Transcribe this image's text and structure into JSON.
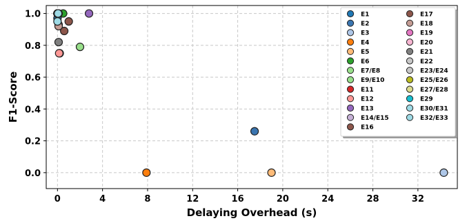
{
  "chart_data": {
    "type": "scatter",
    "xlabel": "Delaying Overhead (s)",
    "ylabel": "F1-Score",
    "xlim": [
      -1,
      35.5
    ],
    "ylim": [
      -0.1,
      1.05
    ],
    "xticks": [
      0,
      4,
      8,
      12,
      16,
      20,
      24,
      28,
      32
    ],
    "yticks": [
      0.0,
      0.2,
      0.4,
      0.6,
      0.8,
      1.0
    ],
    "xtick_labels": [
      "0",
      "4",
      "8",
      "12",
      "16",
      "20",
      "24",
      "28",
      "32"
    ],
    "ytick_labels": [
      "0.0",
      "0.2",
      "0.4",
      "0.6",
      "0.8",
      "1.0"
    ],
    "grid": true,
    "legend_placement": "top-right",
    "legend_columns": 2,
    "series": [
      {
        "name": "E1",
        "color": "#1f77b4",
        "points": [
          [
            0.0,
            0.97
          ]
        ]
      },
      {
        "name": "E2",
        "color": "#3a75b0",
        "points": [
          [
            17.5,
            0.26
          ]
        ]
      },
      {
        "name": "E3",
        "color": "#aec7e8",
        "points": [
          [
            34.3,
            0.0
          ]
        ]
      },
      {
        "name": "E4",
        "color": "#ff7f0e",
        "points": [
          [
            7.9,
            0.0
          ]
        ]
      },
      {
        "name": "E5",
        "color": "#ffbb78",
        "points": [
          [
            19.0,
            0.0
          ]
        ]
      },
      {
        "name": "E6",
        "color": "#2ca02c",
        "points": [
          [
            0.5,
            1.0
          ]
        ]
      },
      {
        "name": "E7/E8",
        "color": "#98df8a",
        "points": [
          [
            2.0,
            0.79
          ]
        ]
      },
      {
        "name": "E9/E10",
        "color": "#98df8a",
        "points": [
          [
            0.1,
            1.0
          ]
        ]
      },
      {
        "name": "E11",
        "color": "#d62728",
        "points": [
          [
            0.2,
            0.75
          ]
        ]
      },
      {
        "name": "E12",
        "color": "#ff9896",
        "points": [
          [
            0.15,
            0.75
          ]
        ]
      },
      {
        "name": "E13",
        "color": "#9467bd",
        "points": [
          [
            2.8,
            1.0
          ]
        ]
      },
      {
        "name": "E14/E15",
        "color": "#c5b0d5",
        "points": [
          [
            0.1,
            0.93
          ]
        ]
      },
      {
        "name": "E16",
        "color": "#8c564b",
        "points": [
          [
            1.0,
            0.95
          ]
        ]
      },
      {
        "name": "E17",
        "color": "#8c564b",
        "points": [
          [
            0.6,
            0.89
          ]
        ]
      },
      {
        "name": "E18",
        "color": "#c49c94",
        "points": [
          [
            0.1,
            0.92
          ]
        ]
      },
      {
        "name": "E19",
        "color": "#e377c2",
        "points": [
          [
            0.0,
            1.0
          ]
        ]
      },
      {
        "name": "E20",
        "color": "#f7b6d2",
        "points": [
          [
            0.0,
            1.0
          ]
        ]
      },
      {
        "name": "E21",
        "color": "#7f7f7f",
        "points": [
          [
            0.1,
            0.82
          ]
        ]
      },
      {
        "name": "E22",
        "color": "#c7c7c7",
        "points": [
          [
            0.0,
            1.0
          ]
        ]
      },
      {
        "name": "E23/E24",
        "color": "#c7c7c7",
        "points": [
          [
            0.0,
            1.0
          ]
        ]
      },
      {
        "name": "E25/E26",
        "color": "#bcbd22",
        "points": [
          [
            0.0,
            1.0
          ]
        ]
      },
      {
        "name": "E27/E28",
        "color": "#dbdb8d",
        "points": [
          [
            0.0,
            1.0
          ]
        ]
      },
      {
        "name": "E29",
        "color": "#17becf",
        "points": [
          [
            0.0,
            1.0
          ]
        ]
      },
      {
        "name": "E30/E31",
        "color": "#9edae5",
        "points": [
          [
            0.05,
            1.0
          ]
        ]
      },
      {
        "name": "E32/E33",
        "color": "#9edae5",
        "points": [
          [
            0.0,
            0.95
          ]
        ]
      }
    ]
  }
}
